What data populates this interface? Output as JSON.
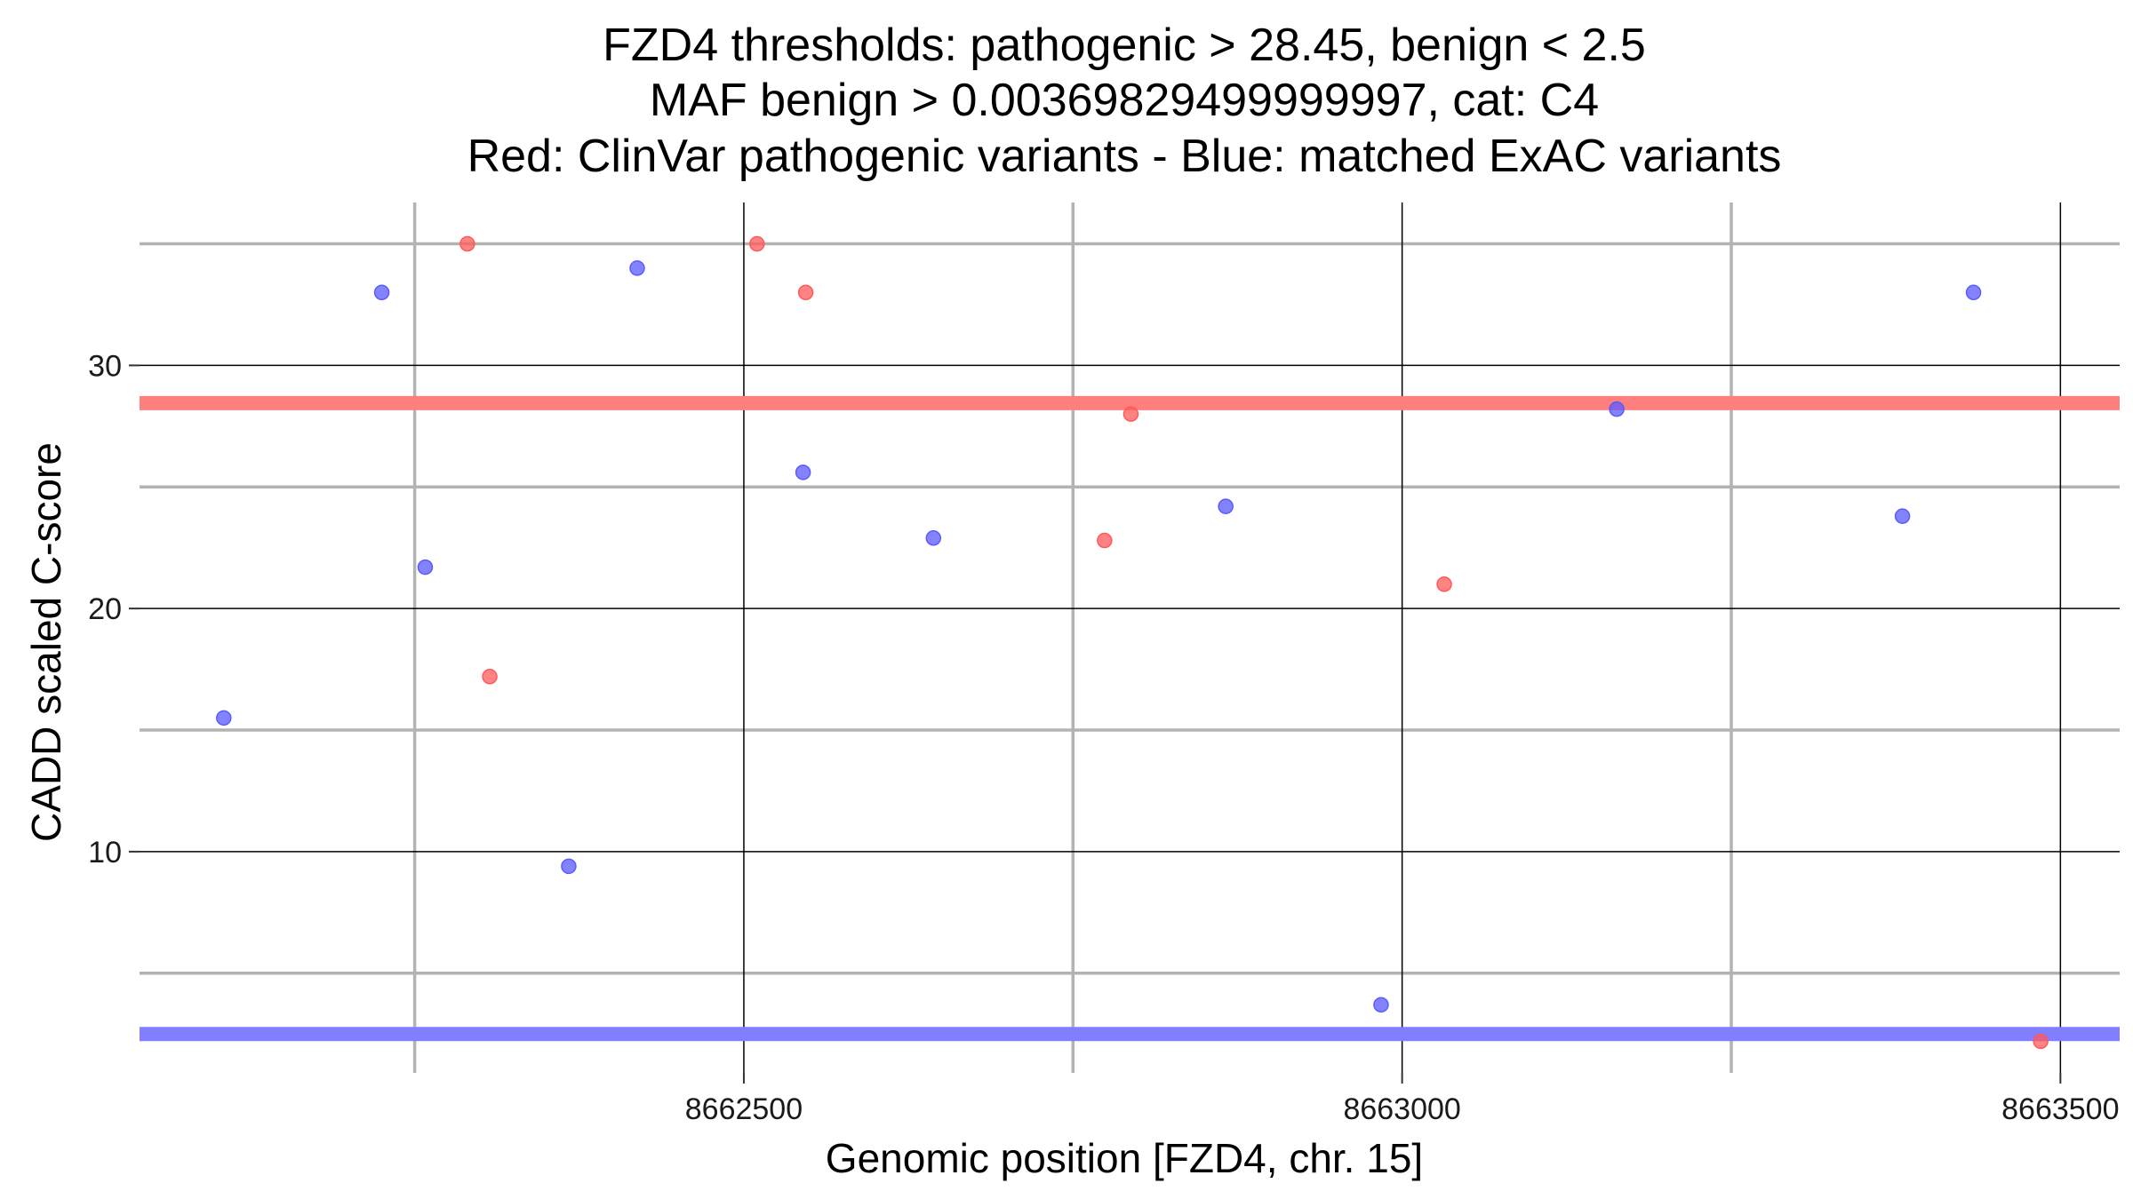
{
  "chart_data": {
    "type": "scatter",
    "title_lines": [
      "FZD4 thresholds: pathogenic > 28.45, benign < 2.5",
      "MAF benign > 0.00369829499999997, cat: C4",
      "Red: ClinVar pathogenic variants - Blue: matched ExAC variants"
    ],
    "xlabel": "Genomic position [FZD4, chr. 15]",
    "ylabel": "CADD scaled C-score",
    "xlim": [
      8662041,
      8663545
    ],
    "ylim": [
      0.9,
      36.7
    ],
    "x_ticks": [
      8662500,
      8663000,
      8663500
    ],
    "x_tick_labels": [
      "8662500",
      "8663000",
      "8663500"
    ],
    "x_minor_ticks": [
      8662250,
      8662750,
      8663250
    ],
    "y_ticks": [
      10,
      20,
      30
    ],
    "y_tick_labels": [
      "10",
      "20",
      "30"
    ],
    "y_minor_ticks": [
      5,
      15,
      25,
      35
    ],
    "thresholds": [
      {
        "name": "pathogenic",
        "value": 28.45,
        "color": "#ff7f7f"
      },
      {
        "name": "benign",
        "value": 2.5,
        "color": "#7f7fff"
      }
    ],
    "series": [
      {
        "name": "ClinVar pathogenic variants",
        "color": "#ff5a5a",
        "points": [
          {
            "x": 8662290,
            "y": 35.0
          },
          {
            "x": 8662307,
            "y": 17.2
          },
          {
            "x": 8662510,
            "y": 35.0
          },
          {
            "x": 8662547,
            "y": 33.0
          },
          {
            "x": 8662774,
            "y": 22.8
          },
          {
            "x": 8662794,
            "y": 28.0
          },
          {
            "x": 8663032,
            "y": 21.0
          },
          {
            "x": 8663485,
            "y": 2.2
          }
        ]
      },
      {
        "name": "matched ExAC variants",
        "color": "#5a5aff",
        "points": [
          {
            "x": 8662105,
            "y": 15.5
          },
          {
            "x": 8662225,
            "y": 33.0
          },
          {
            "x": 8662258,
            "y": 21.7
          },
          {
            "x": 8662367,
            "y": 9.4
          },
          {
            "x": 8662419,
            "y": 34.0
          },
          {
            "x": 8662545,
            "y": 25.6
          },
          {
            "x": 8662644,
            "y": 22.9
          },
          {
            "x": 8662866,
            "y": 24.2
          },
          {
            "x": 8662984,
            "y": 3.7
          },
          {
            "x": 8663163,
            "y": 28.2
          },
          {
            "x": 8663380,
            "y": 23.8
          },
          {
            "x": 8663434,
            "y": 33.0
          }
        ]
      }
    ],
    "legend": "none",
    "grid": true
  }
}
